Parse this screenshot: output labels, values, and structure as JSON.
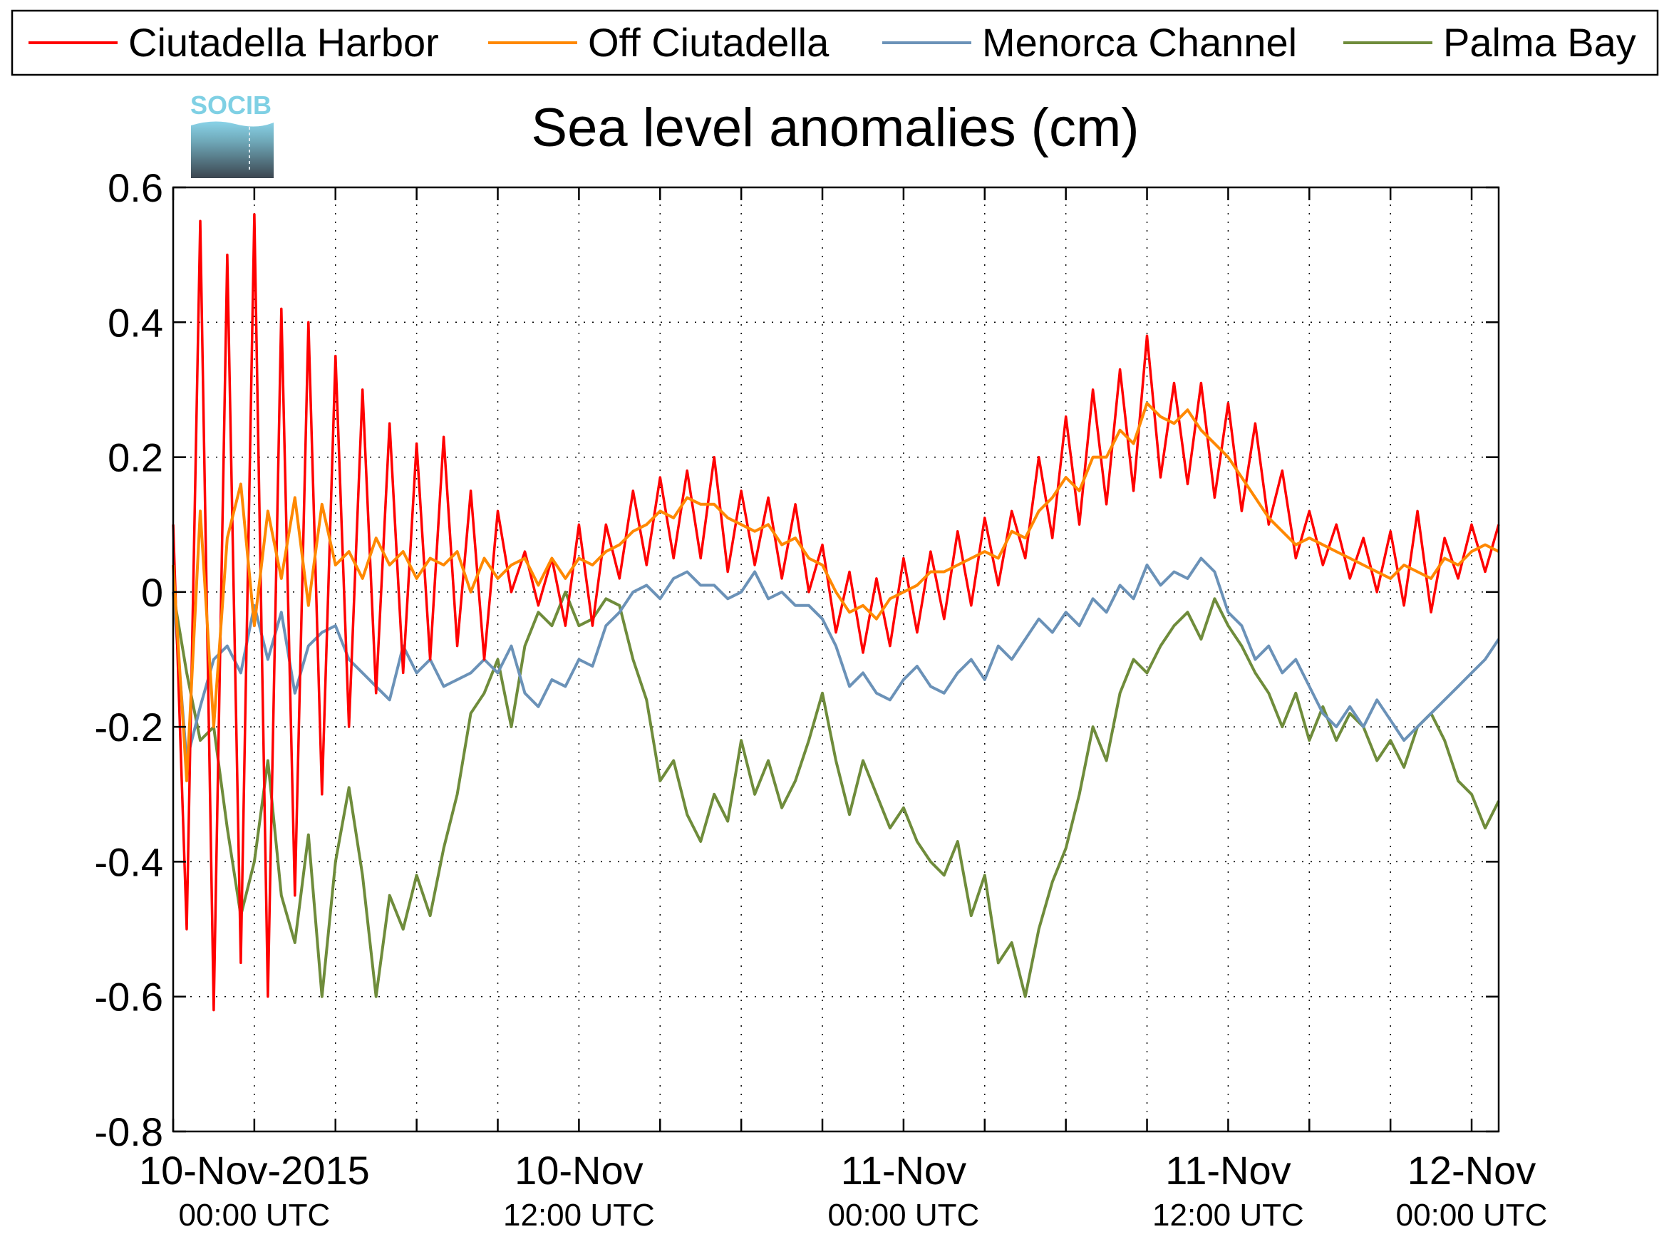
{
  "chart_data": {
    "type": "line",
    "title": "Sea level anomalies (cm)",
    "logo": {
      "text": "SOCIB"
    },
    "xlabel": "",
    "ylabel": "",
    "ylim": [
      -0.8,
      0.6
    ],
    "yticks": [
      {
        "value": -0.8,
        "label": "-0.8"
      },
      {
        "value": -0.6,
        "label": "-0.6"
      },
      {
        "value": -0.4,
        "label": "-0.4"
      },
      {
        "value": -0.2,
        "label": "-0.2"
      },
      {
        "value": 0,
        "label": "0"
      },
      {
        "value": 0.2,
        "label": "0.2"
      },
      {
        "value": 0.4,
        "label": "0.4"
      },
      {
        "value": 0.6,
        "label": "0.6"
      }
    ],
    "x_axis": {
      "start": "2015-11-10 00:00 UTC",
      "end": "2015-11-12 00:00 UTC",
      "unit": "hours",
      "xlim": [
        -1,
        48
      ],
      "minor_ticks": [
        -1,
        2,
        5,
        8,
        11,
        14,
        17,
        20,
        23,
        26,
        29,
        32,
        35,
        38,
        41,
        44,
        47
      ],
      "major_ticks": [
        {
          "value": 2,
          "label": "10-Nov-2015",
          "sublabel": "00:00 UTC"
        },
        {
          "value": 14,
          "label": "10-Nov",
          "sublabel": "12:00 UTC"
        },
        {
          "value": 26,
          "label": "11-Nov",
          "sublabel": "00:00 UTC"
        },
        {
          "value": 38,
          "label": "11-Nov",
          "sublabel": "12:00 UTC"
        },
        {
          "value": 47,
          "label": "12-Nov",
          "sublabel": "00:00 UTC"
        }
      ]
    },
    "grid": true,
    "legend": {
      "position": "top",
      "entries": [
        "Ciutadella Harbor",
        "Off Ciutadella",
        "Menorca Channel",
        "Palma Bay"
      ]
    },
    "series": [
      {
        "name": "Ciutadella Harbor",
        "color": "#ff0000",
        "x": [
          -1,
          -0.5,
          0,
          0.5,
          1,
          1.5,
          2,
          2.5,
          3,
          3.5,
          4,
          4.5,
          5,
          5.5,
          6,
          6.5,
          7,
          7.5,
          8,
          8.5,
          9,
          9.5,
          10,
          10.5,
          11,
          11.5,
          12,
          12.5,
          13,
          13.5,
          14,
          14.5,
          15,
          15.5,
          16,
          16.5,
          17,
          17.5,
          18,
          18.5,
          19,
          19.5,
          20,
          20.5,
          21,
          21.5,
          22,
          22.5,
          23,
          23.5,
          24,
          24.5,
          25,
          25.5,
          26,
          26.5,
          27,
          27.5,
          28,
          28.5,
          29,
          29.5,
          30,
          30.5,
          31,
          31.5,
          32,
          32.5,
          33,
          33.5,
          34,
          34.5,
          35,
          35.5,
          36,
          36.5,
          37,
          37.5,
          38,
          38.5,
          39,
          39.5,
          40,
          40.5,
          41,
          41.5,
          42,
          42.5,
          43,
          43.5,
          44,
          44.5,
          45,
          45.5,
          46,
          46.5,
          47,
          47.5,
          48
        ],
        "values": [
          0.1,
          -0.5,
          0.55,
          -0.62,
          0.5,
          -0.55,
          0.56,
          -0.6,
          0.42,
          -0.45,
          0.4,
          -0.3,
          0.35,
          -0.2,
          0.3,
          -0.15,
          0.25,
          -0.12,
          0.22,
          -0.1,
          0.23,
          -0.08,
          0.15,
          -0.1,
          0.12,
          0,
          0.06,
          -0.02,
          0.05,
          -0.05,
          0.1,
          -0.05,
          0.1,
          0.02,
          0.15,
          0.04,
          0.17,
          0.05,
          0.18,
          0.05,
          0.2,
          0.03,
          0.15,
          0.04,
          0.14,
          0.02,
          0.13,
          0,
          0.07,
          -0.06,
          0.03,
          -0.09,
          0.02,
          -0.08,
          0.05,
          -0.06,
          0.06,
          -0.04,
          0.09,
          -0.02,
          0.11,
          0.01,
          0.12,
          0.05,
          0.2,
          0.08,
          0.26,
          0.1,
          0.3,
          0.13,
          0.33,
          0.15,
          0.38,
          0.17,
          0.31,
          0.16,
          0.31,
          0.14,
          0.28,
          0.12,
          0.25,
          0.1,
          0.18,
          0.05,
          0.12,
          0.04,
          0.1,
          0.02,
          0.08,
          0,
          0.09,
          -0.02,
          0.12,
          -0.03,
          0.08,
          0.02,
          0.1,
          0.03,
          0.1
        ]
      },
      {
        "name": "Off Ciutadella",
        "color": "#ff8800",
        "x": [
          -1,
          -0.5,
          0,
          0.5,
          1,
          1.5,
          2,
          2.5,
          3,
          3.5,
          4,
          4.5,
          5,
          5.5,
          6,
          6.5,
          7,
          7.5,
          8,
          8.5,
          9,
          9.5,
          10,
          10.5,
          11,
          11.5,
          12,
          12.5,
          13,
          13.5,
          14,
          14.5,
          15,
          15.5,
          16,
          16.5,
          17,
          17.5,
          18,
          18.5,
          19,
          19.5,
          20,
          20.5,
          21,
          21.5,
          22,
          22.5,
          23,
          23.5,
          24,
          24.5,
          25,
          25.5,
          26,
          26.5,
          27,
          27.5,
          28,
          28.5,
          29,
          29.5,
          30,
          30.5,
          31,
          31.5,
          32,
          32.5,
          33,
          33.5,
          34,
          34.5,
          35,
          35.5,
          36,
          36.5,
          37,
          37.5,
          38,
          38.5,
          39,
          39.5,
          40,
          40.5,
          41,
          41.5,
          42,
          42.5,
          43,
          43.5,
          44,
          44.5,
          45,
          45.5,
          46,
          46.5,
          47,
          47.5,
          48
        ],
        "values": [
          0.04,
          -0.28,
          0.12,
          -0.2,
          0.08,
          0.16,
          -0.05,
          0.12,
          0.02,
          0.14,
          -0.02,
          0.13,
          0.04,
          0.06,
          0.02,
          0.08,
          0.04,
          0.06,
          0.02,
          0.05,
          0.04,
          0.06,
          0,
          0.05,
          0.02,
          0.04,
          0.05,
          0.01,
          0.05,
          0.02,
          0.05,
          0.04,
          0.06,
          0.07,
          0.09,
          0.1,
          0.12,
          0.11,
          0.14,
          0.13,
          0.13,
          0.11,
          0.1,
          0.09,
          0.1,
          0.07,
          0.08,
          0.05,
          0.04,
          0,
          -0.03,
          -0.02,
          -0.04,
          -0.01,
          0,
          0.01,
          0.03,
          0.03,
          0.04,
          0.05,
          0.06,
          0.05,
          0.09,
          0.08,
          0.12,
          0.14,
          0.17,
          0.15,
          0.2,
          0.2,
          0.24,
          0.22,
          0.28,
          0.26,
          0.25,
          0.27,
          0.24,
          0.22,
          0.2,
          0.17,
          0.14,
          0.11,
          0.09,
          0.07,
          0.08,
          0.07,
          0.06,
          0.05,
          0.04,
          0.03,
          0.02,
          0.04,
          0.03,
          0.02,
          0.05,
          0.04,
          0.06,
          0.07,
          0.06
        ]
      },
      {
        "name": "Menorca Channel",
        "color": "#6b92b8",
        "x": [
          -1,
          -0.5,
          0,
          0.5,
          1,
          1.5,
          2,
          2.5,
          3,
          3.5,
          4,
          4.5,
          5,
          5.5,
          6,
          6.5,
          7,
          7.5,
          8,
          8.5,
          9,
          9.5,
          10,
          10.5,
          11,
          11.5,
          12,
          12.5,
          13,
          13.5,
          14,
          14.5,
          15,
          15.5,
          16,
          16.5,
          17,
          17.5,
          18,
          18.5,
          19,
          19.5,
          20,
          20.5,
          21,
          21.5,
          22,
          22.5,
          23,
          23.5,
          24,
          24.5,
          25,
          25.5,
          26,
          26.5,
          27,
          27.5,
          28,
          28.5,
          29,
          29.5,
          30,
          30.5,
          31,
          31.5,
          32,
          32.5,
          33,
          33.5,
          34,
          34.5,
          35,
          35.5,
          36,
          36.5,
          37,
          37.5,
          38,
          38.5,
          39,
          39.5,
          40,
          40.5,
          41,
          41.5,
          42,
          42.5,
          43,
          43.5,
          44,
          44.5,
          45,
          45.5,
          46,
          46.5,
          47,
          47.5,
          48
        ],
        "values": [
          0,
          -0.25,
          -0.17,
          -0.1,
          -0.08,
          -0.12,
          -0.02,
          -0.1,
          -0.03,
          -0.15,
          -0.08,
          -0.06,
          -0.05,
          -0.1,
          -0.12,
          -0.14,
          -0.16,
          -0.08,
          -0.12,
          -0.1,
          -0.14,
          -0.13,
          -0.12,
          -0.1,
          -0.12,
          -0.08,
          -0.15,
          -0.17,
          -0.13,
          -0.14,
          -0.1,
          -0.11,
          -0.05,
          -0.03,
          0,
          0.01,
          -0.01,
          0.02,
          0.03,
          0.01,
          0.01,
          -0.01,
          0,
          0.03,
          -0.01,
          0,
          -0.02,
          -0.02,
          -0.04,
          -0.08,
          -0.14,
          -0.12,
          -0.15,
          -0.16,
          -0.13,
          -0.11,
          -0.14,
          -0.15,
          -0.12,
          -0.1,
          -0.13,
          -0.08,
          -0.1,
          -0.07,
          -0.04,
          -0.06,
          -0.03,
          -0.05,
          -0.01,
          -0.03,
          0.01,
          -0.01,
          0.04,
          0.01,
          0.03,
          0.02,
          0.05,
          0.03,
          -0.03,
          -0.05,
          -0.1,
          -0.08,
          -0.12,
          -0.1,
          -0.14,
          -0.18,
          -0.2,
          -0.17,
          -0.2,
          -0.16,
          -0.19,
          -0.22,
          -0.2,
          -0.18,
          -0.16,
          -0.14,
          -0.12,
          -0.1,
          -0.07
        ]
      },
      {
        "name": "Palma Bay",
        "color": "#6f8c3b",
        "x": [
          -1,
          -0.5,
          0,
          0.5,
          1,
          1.5,
          2,
          2.5,
          3,
          3.5,
          4,
          4.5,
          5,
          5.5,
          6,
          6.5,
          7,
          7.5,
          8,
          8.5,
          9,
          9.5,
          10,
          10.5,
          11,
          11.5,
          12,
          12.5,
          13,
          13.5,
          14,
          14.5,
          15,
          15.5,
          16,
          16.5,
          17,
          17.5,
          18,
          18.5,
          19,
          19.5,
          20,
          20.5,
          21,
          21.5,
          22,
          22.5,
          23,
          23.5,
          24,
          24.5,
          25,
          25.5,
          26,
          26.5,
          27,
          27.5,
          28,
          28.5,
          29,
          29.5,
          30,
          30.5,
          31,
          31.5,
          32,
          32.5,
          33,
          33.5,
          34,
          34.5,
          35,
          35.5,
          36,
          36.5,
          37,
          37.5,
          38,
          38.5,
          39,
          39.5,
          40,
          40.5,
          41,
          41.5,
          42,
          42.5,
          43,
          43.5,
          44,
          44.5,
          45,
          45.5,
          46,
          46.5,
          47,
          47.5,
          48
        ],
        "values": [
          0,
          -0.12,
          -0.22,
          -0.2,
          -0.35,
          -0.48,
          -0.4,
          -0.25,
          -0.45,
          -0.52,
          -0.36,
          -0.6,
          -0.4,
          -0.29,
          -0.42,
          -0.6,
          -0.45,
          -0.5,
          -0.42,
          -0.48,
          -0.38,
          -0.3,
          -0.18,
          -0.15,
          -0.1,
          -0.2,
          -0.08,
          -0.03,
          -0.05,
          0,
          -0.05,
          -0.04,
          -0.01,
          -0.02,
          -0.1,
          -0.16,
          -0.28,
          -0.25,
          -0.33,
          -0.37,
          -0.3,
          -0.34,
          -0.22,
          -0.3,
          -0.25,
          -0.32,
          -0.28,
          -0.22,
          -0.15,
          -0.25,
          -0.33,
          -0.25,
          -0.3,
          -0.35,
          -0.32,
          -0.37,
          -0.4,
          -0.42,
          -0.37,
          -0.48,
          -0.42,
          -0.55,
          -0.52,
          -0.6,
          -0.5,
          -0.43,
          -0.38,
          -0.3,
          -0.2,
          -0.25,
          -0.15,
          -0.1,
          -0.12,
          -0.08,
          -0.05,
          -0.03,
          -0.07,
          -0.01,
          -0.05,
          -0.08,
          -0.12,
          -0.15,
          -0.2,
          -0.15,
          -0.22,
          -0.17,
          -0.22,
          -0.18,
          -0.2,
          -0.25,
          -0.22,
          -0.26,
          -0.2,
          -0.18,
          -0.22,
          -0.28,
          -0.3,
          -0.35,
          -0.31
        ]
      }
    ]
  }
}
